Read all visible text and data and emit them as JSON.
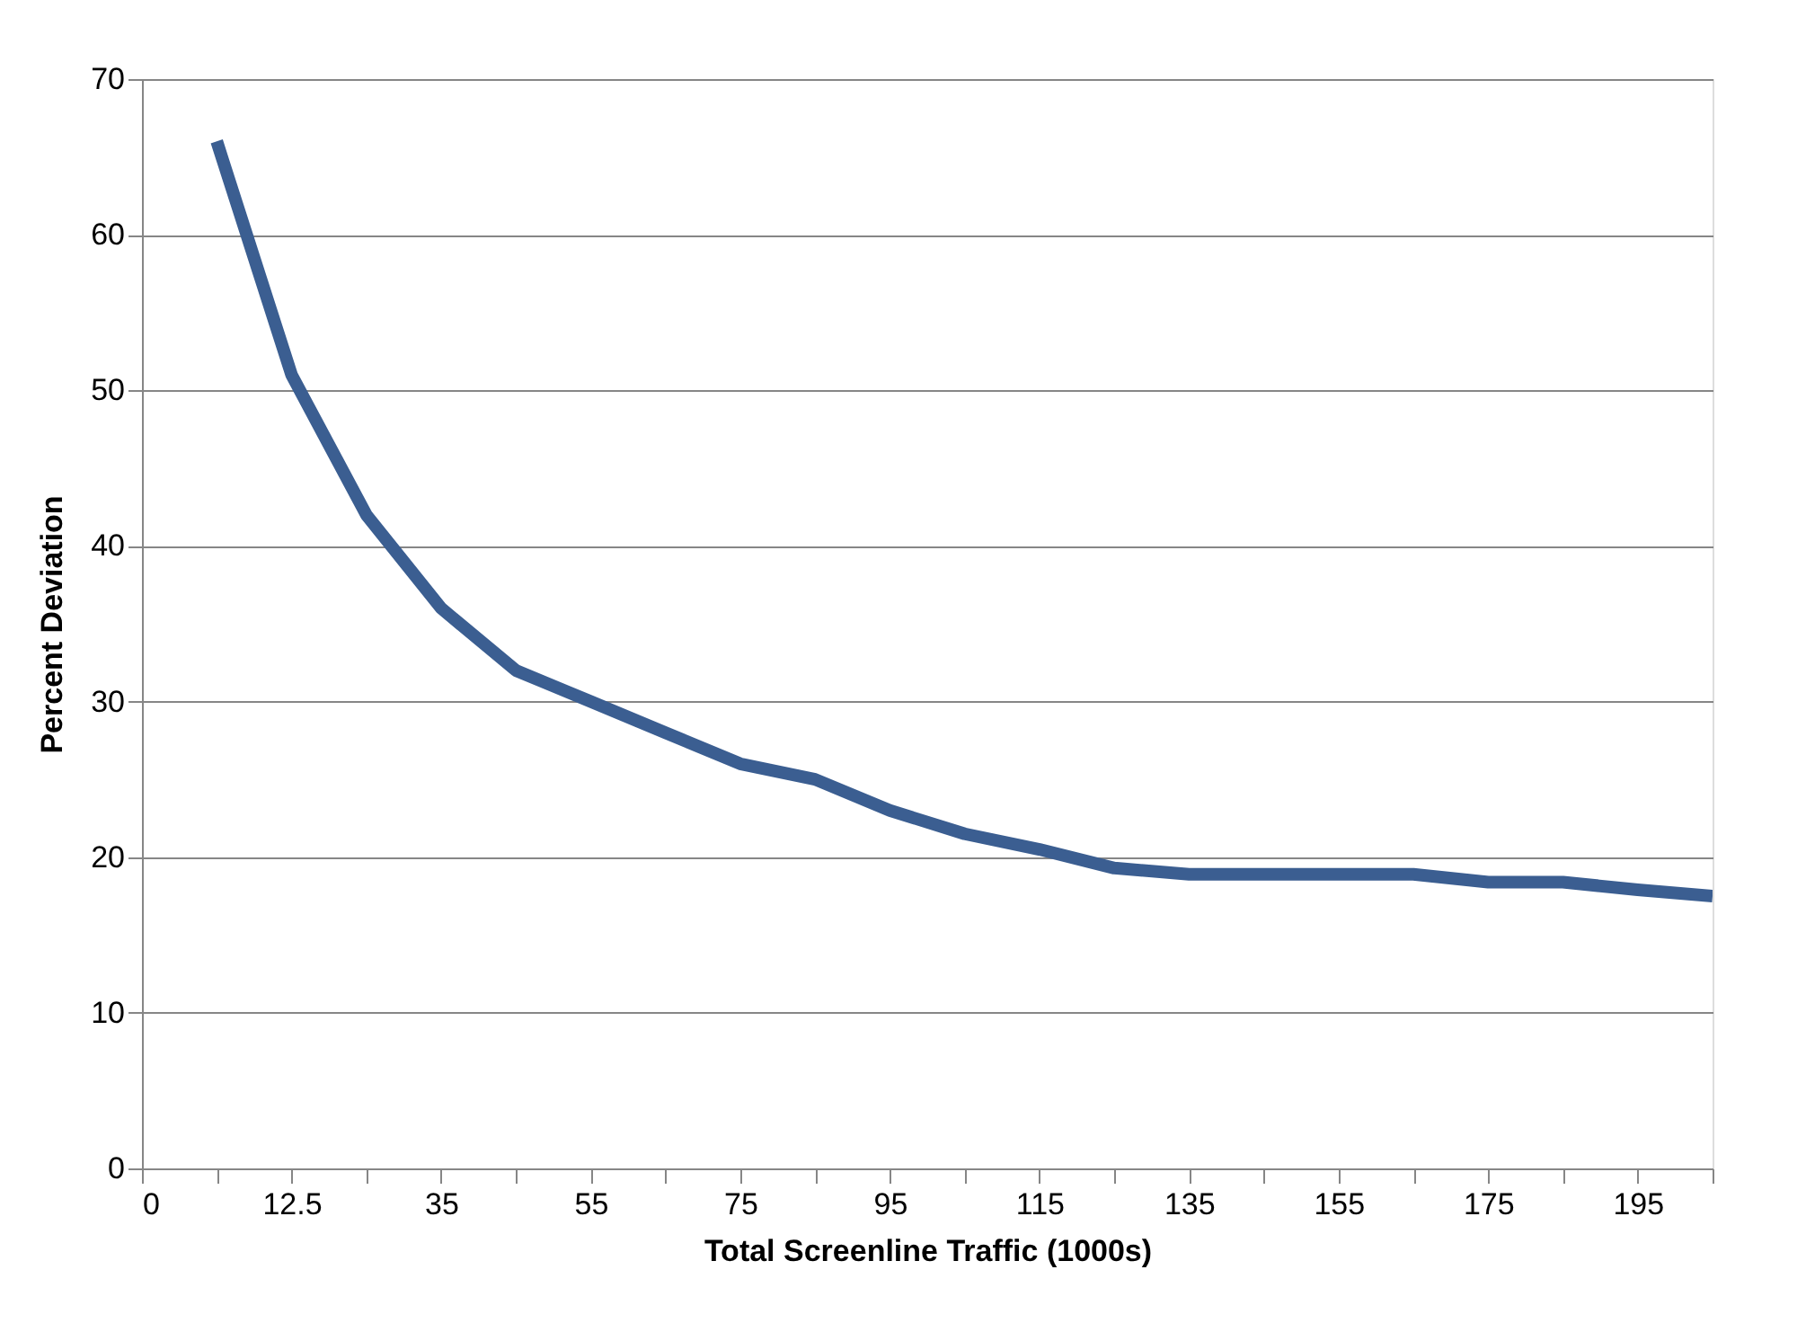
{
  "chart_data": {
    "type": "line",
    "xlabel": "Total Screenline Traffic (1000s)",
    "ylabel": "Percent Deviation",
    "categories": [
      "0",
      null,
      "12.5",
      null,
      "35",
      null,
      "55",
      null,
      "75",
      null,
      "95",
      null,
      "115",
      null,
      "135",
      null,
      "155",
      null,
      "175",
      null,
      "195",
      null
    ],
    "series": [
      {
        "color": "#3b5e91",
        "values": [
          null,
          66,
          51,
          42,
          36,
          32,
          30,
          28,
          26,
          25,
          23,
          21.5,
          20.5,
          19.3,
          18.9,
          18.9,
          18.9,
          18.9,
          18.4,
          18.4,
          17.9,
          17.5
        ]
      }
    ],
    "ylim": [
      0,
      70
    ],
    "yticks": [
      0,
      10,
      20,
      30,
      40,
      50,
      60,
      70
    ],
    "grid": "y",
    "marker": "none",
    "line_style": "solid"
  }
}
